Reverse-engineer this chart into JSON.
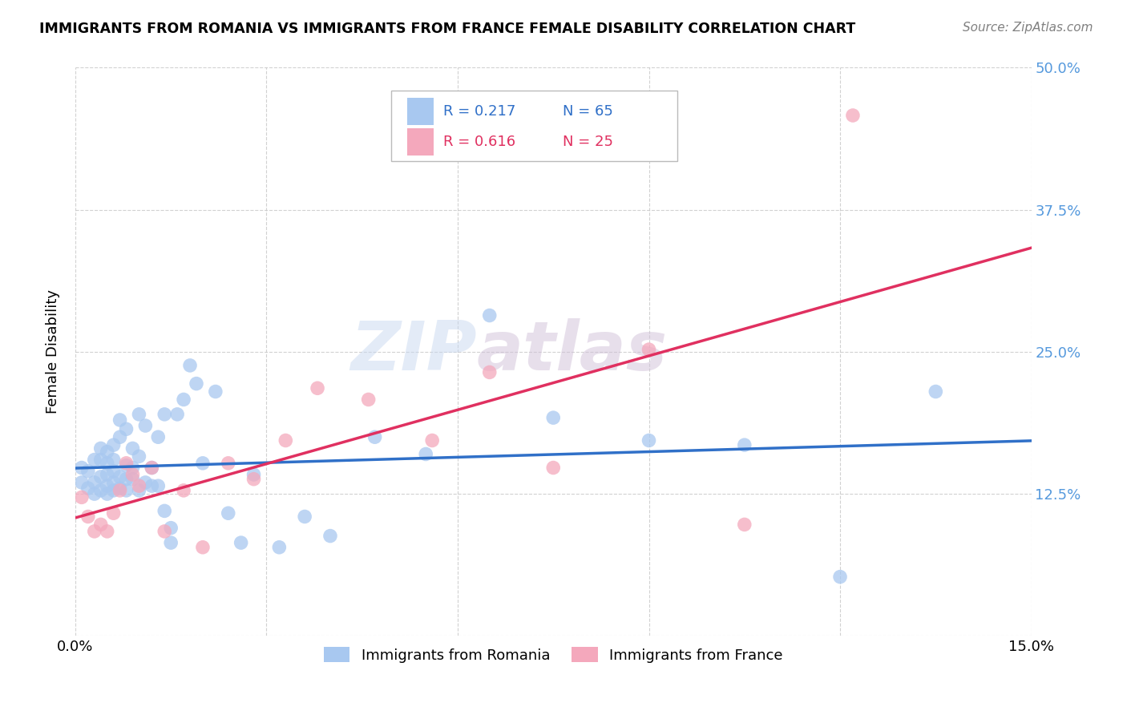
{
  "title": "IMMIGRANTS FROM ROMANIA VS IMMIGRANTS FROM FRANCE FEMALE DISABILITY CORRELATION CHART",
  "source": "Source: ZipAtlas.com",
  "ylabel": "Female Disability",
  "xlim": [
    0.0,
    0.15
  ],
  "ylim": [
    0.0,
    0.5
  ],
  "xticks": [
    0.0,
    0.03,
    0.06,
    0.09,
    0.12,
    0.15
  ],
  "xticklabels": [
    "0.0%",
    "",
    "",
    "",
    "",
    "15.0%"
  ],
  "yticks": [
    0.0,
    0.125,
    0.25,
    0.375,
    0.5
  ],
  "yticklabels": [
    "",
    "12.5%",
    "25.0%",
    "37.5%",
    "50.0%"
  ],
  "romania_R": 0.217,
  "romania_N": 65,
  "france_R": 0.616,
  "france_N": 25,
  "romania_color": "#A8C8F0",
  "france_color": "#F4A8BC",
  "romania_line_color": "#3070C8",
  "france_line_color": "#E03060",
  "tick_color": "#5599DD",
  "watermark": "ZIPatlas",
  "romania_x": [
    0.001,
    0.001,
    0.002,
    0.002,
    0.003,
    0.003,
    0.003,
    0.004,
    0.004,
    0.004,
    0.004,
    0.005,
    0.005,
    0.005,
    0.005,
    0.005,
    0.006,
    0.006,
    0.006,
    0.006,
    0.006,
    0.007,
    0.007,
    0.007,
    0.007,
    0.008,
    0.008,
    0.008,
    0.008,
    0.009,
    0.009,
    0.009,
    0.01,
    0.01,
    0.01,
    0.011,
    0.011,
    0.012,
    0.012,
    0.013,
    0.013,
    0.014,
    0.014,
    0.015,
    0.015,
    0.016,
    0.017,
    0.018,
    0.019,
    0.02,
    0.022,
    0.024,
    0.026,
    0.028,
    0.032,
    0.036,
    0.04,
    0.047,
    0.055,
    0.065,
    0.075,
    0.09,
    0.105,
    0.12,
    0.135
  ],
  "romania_y": [
    0.135,
    0.148,
    0.13,
    0.145,
    0.125,
    0.135,
    0.155,
    0.128,
    0.14,
    0.155,
    0.165,
    0.125,
    0.132,
    0.142,
    0.152,
    0.162,
    0.128,
    0.135,
    0.145,
    0.155,
    0.168,
    0.13,
    0.14,
    0.175,
    0.19,
    0.128,
    0.138,
    0.15,
    0.182,
    0.138,
    0.148,
    0.165,
    0.128,
    0.158,
    0.195,
    0.135,
    0.185,
    0.132,
    0.148,
    0.132,
    0.175,
    0.11,
    0.195,
    0.082,
    0.095,
    0.195,
    0.208,
    0.238,
    0.222,
    0.152,
    0.215,
    0.108,
    0.082,
    0.142,
    0.078,
    0.105,
    0.088,
    0.175,
    0.16,
    0.282,
    0.192,
    0.172,
    0.168,
    0.052,
    0.215
  ],
  "france_x": [
    0.001,
    0.002,
    0.003,
    0.004,
    0.005,
    0.006,
    0.007,
    0.008,
    0.009,
    0.01,
    0.012,
    0.014,
    0.017,
    0.02,
    0.024,
    0.028,
    0.033,
    0.038,
    0.046,
    0.056,
    0.065,
    0.075,
    0.09,
    0.105,
    0.122
  ],
  "france_y": [
    0.122,
    0.105,
    0.092,
    0.098,
    0.092,
    0.108,
    0.128,
    0.152,
    0.142,
    0.132,
    0.148,
    0.092,
    0.128,
    0.078,
    0.152,
    0.138,
    0.172,
    0.218,
    0.208,
    0.172,
    0.232,
    0.148,
    0.252,
    0.098,
    0.458
  ]
}
